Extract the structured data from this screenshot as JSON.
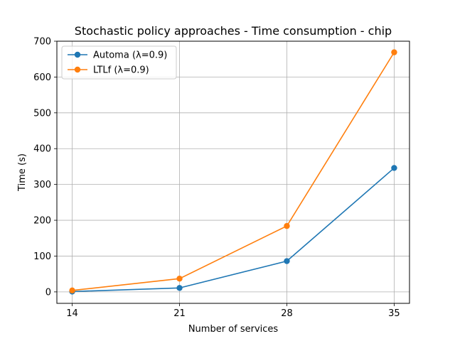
{
  "chart_data": {
    "type": "line",
    "title": "Stochastic policy approaches - Time consumption - chip",
    "xlabel": "Number of services",
    "ylabel": "Time (s)",
    "x": [
      14,
      21,
      28,
      35
    ],
    "xticks": [
      "14",
      "21",
      "28",
      "35"
    ],
    "yticks": [
      "0",
      "100",
      "200",
      "300",
      "400",
      "500",
      "600",
      "700"
    ],
    "xlim": [
      13,
      36
    ],
    "ylim": [
      -32,
      700
    ],
    "grid": true,
    "legend_position": "upper-left",
    "series": [
      {
        "name": "Automa (λ=0.9)",
        "color": "#1f77b4",
        "values": [
          1,
          11,
          86,
          346
        ]
      },
      {
        "name": "LTLf (λ=0.9)",
        "color": "#ff7f0e",
        "values": [
          4,
          37,
          184,
          669
        ]
      }
    ]
  }
}
